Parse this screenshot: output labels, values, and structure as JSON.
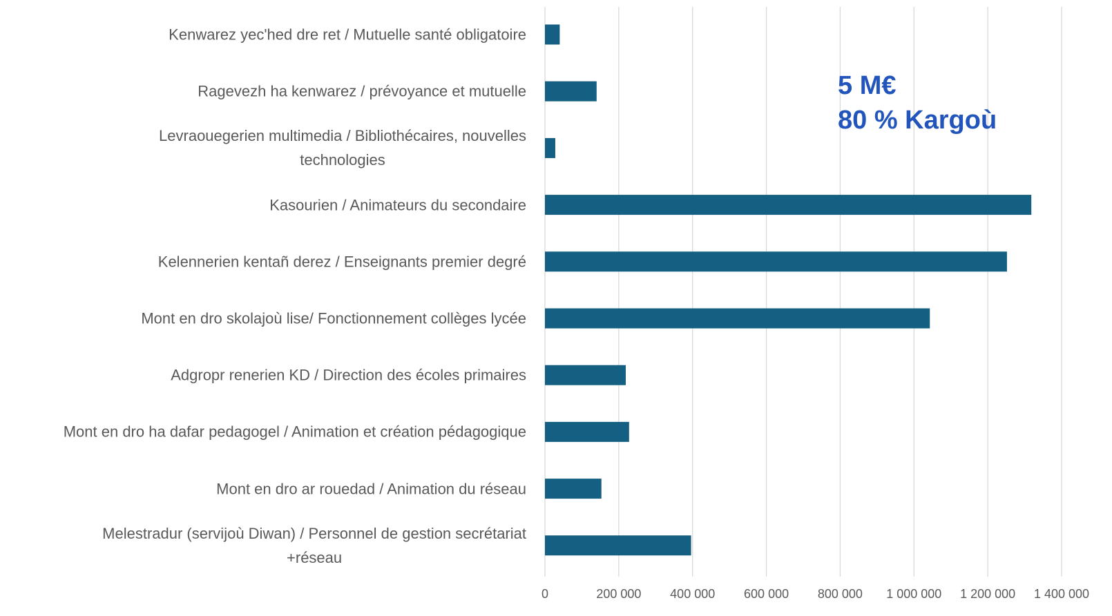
{
  "chart_data": {
    "type": "bar",
    "orientation": "horizontal",
    "categories": [
      "Kenwarez yec'hed dre ret / Mutuelle santé obligatoire",
      "Ragevezh ha kenwarez / prévoyance et mutuelle",
      "Levraouegerien multimedia / Bibliothécaires, nouvelles\ntechnologies",
      "Kasourien / Animateurs du secondaire",
      "Kelennerien kentañ derez / Enseignants premier degré",
      "Mont en dro skolajoù lise/ Fonctionnement collèges lycée",
      "Adgropr renerien KD / Direction des écoles primaires",
      "Mont en dro ha dafar pedagogel / Animation et création pédagogique",
      "Mont en dro ar rouedad / Animation du réseau",
      "Melestradur (servijoù Diwan) / Personnel de gestion secrétariat\n+réseau"
    ],
    "values": [
      40000,
      140000,
      28000,
      1318000,
      1252000,
      1043000,
      219000,
      228000,
      153000,
      396000
    ],
    "color": "#156082",
    "xlim": [
      0,
      1400000
    ],
    "xticks": [
      0,
      {
        "value": 200000,
        "label": "200 000"
      },
      {
        "value": 400000,
        "label": "400 000"
      },
      {
        "value": 600000,
        "label": "600 000"
      },
      {
        "value": 800000,
        "label": "800 000"
      },
      {
        "value": 1000000,
        "label": "1 000 000"
      },
      {
        "value": 1200000,
        "label": "1 200 000"
      },
      {
        "value": 1400000,
        "label": "1 400 000"
      }
    ],
    "grid": true,
    "annotations": [
      "5 M€",
      "80 % Kargoù"
    ],
    "annotation_color": "#2255bb"
  }
}
